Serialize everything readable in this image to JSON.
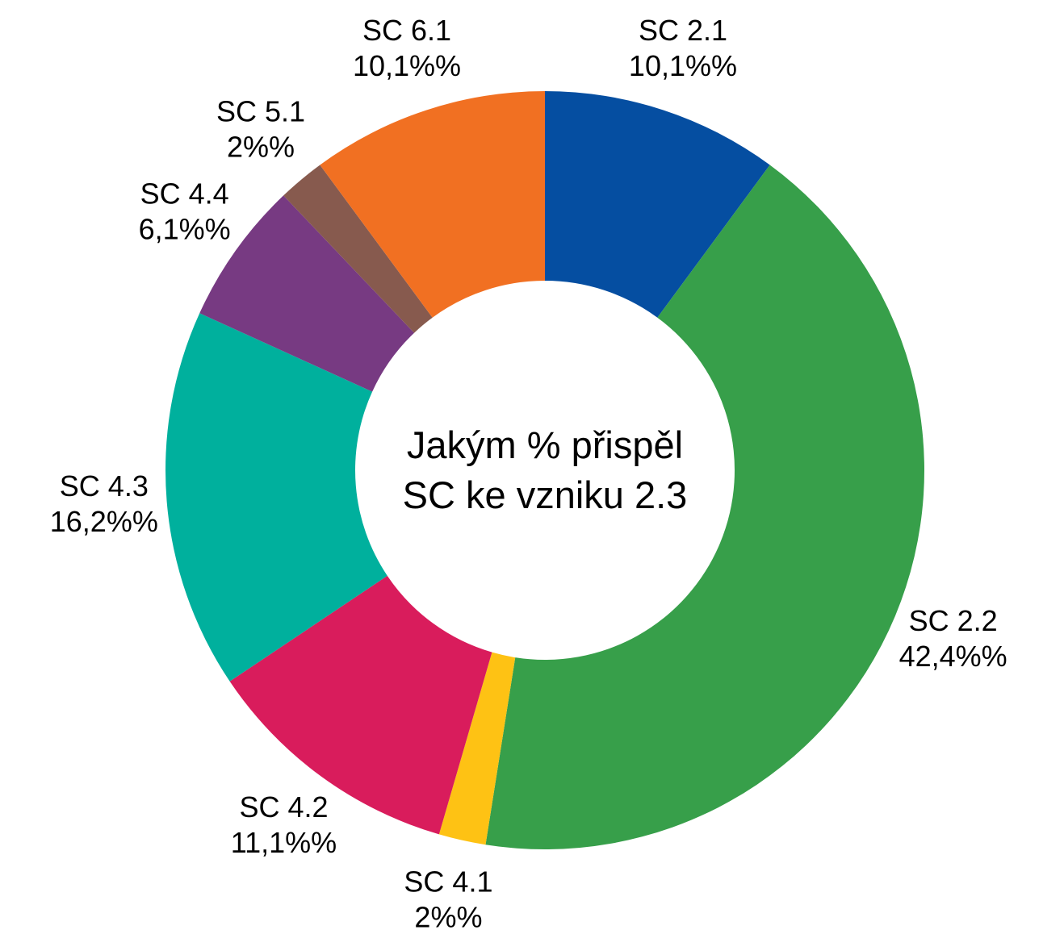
{
  "chart_data": {
    "type": "donut",
    "title": "Jakým % přispěl SC ke vzniku 2.3",
    "categories": [
      "SC 2.1",
      "SC 2.2",
      "SC 4.1",
      "SC 4.2",
      "SC 4.3",
      "SC 4.4",
      "SC 5.1",
      "SC 6.1"
    ],
    "values": [
      10.1,
      42.4,
      2,
      11.1,
      16.2,
      6.1,
      2,
      10.1
    ],
    "value_labels": [
      "10,1%%",
      "42,4%%",
      "2%%",
      "11,1%%",
      "16,2%%",
      "6,1%%",
      "2%%",
      "10,1%%"
    ],
    "colors": [
      "#054ea1",
      "#379f4a",
      "#fec214",
      "#d91c5c",
      "#00b09d",
      "#773a82",
      "#875a4e",
      "#f17022"
    ]
  }
}
